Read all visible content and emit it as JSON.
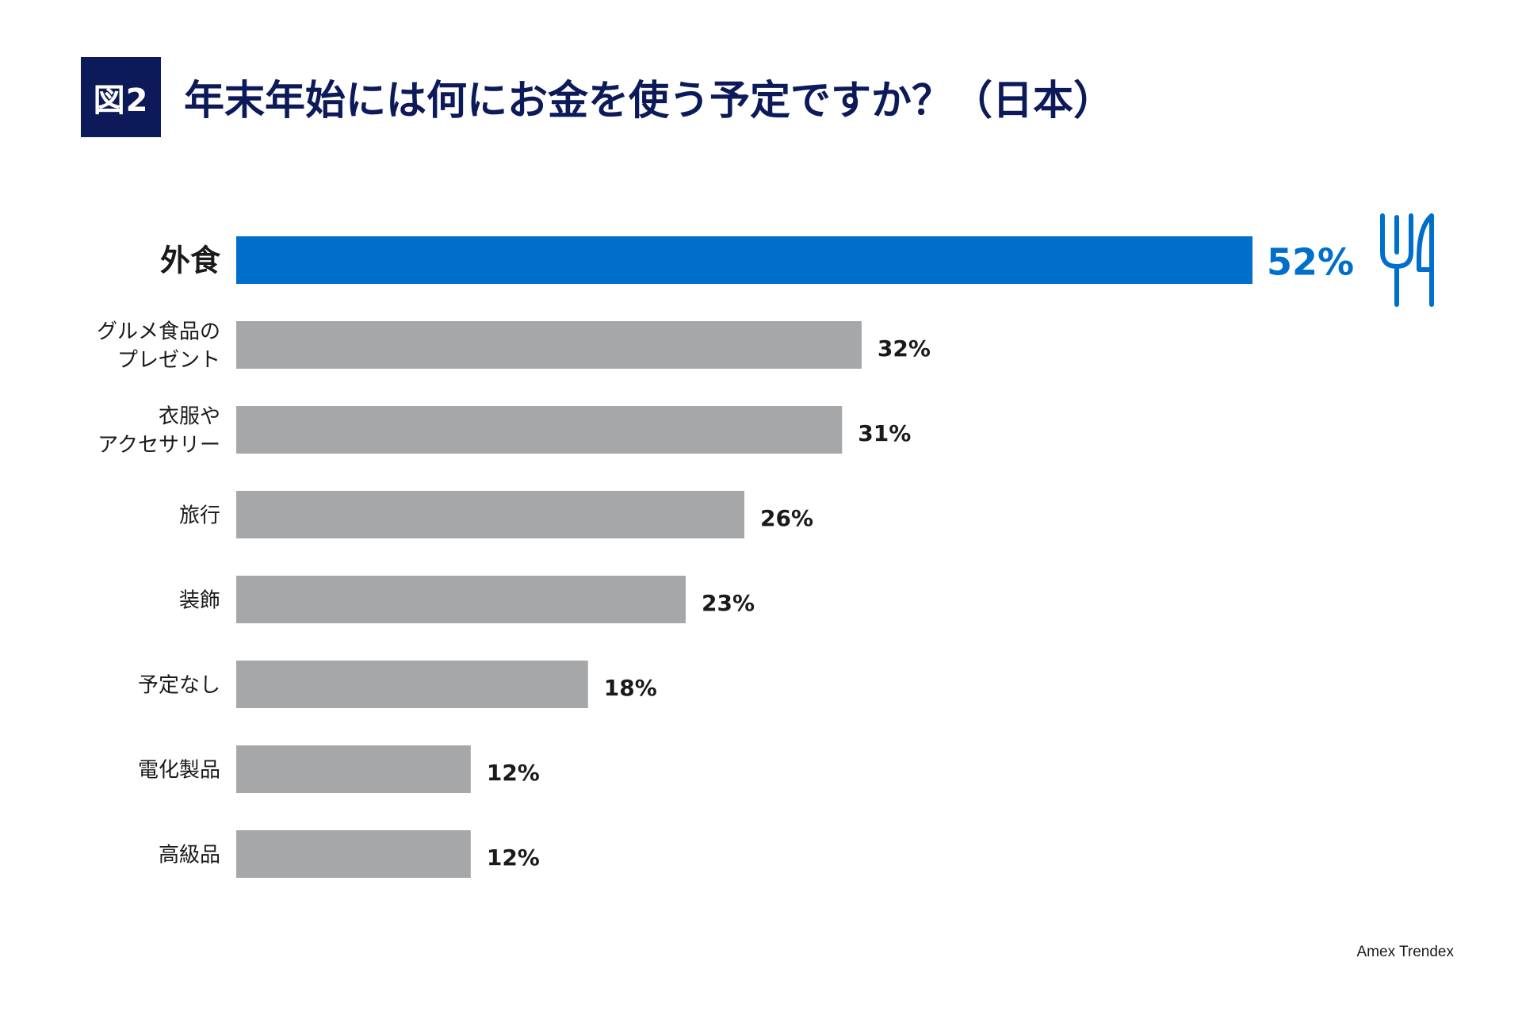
{
  "figure": {
    "badge": "図2",
    "title": "年末年始には何にお金を使う予定ですか？（日本）",
    "source": "Amex Trendex"
  },
  "colors": {
    "highlight": "#006fcc",
    "bar": "#a6a7a9",
    "badge_bg": "#0c1a5a",
    "text": "#1a1a1a"
  },
  "chart_data": {
    "type": "bar",
    "orientation": "horizontal",
    "title": "年末年始には何にお金を使う予定ですか？（日本）",
    "categories": [
      [
        "外食"
      ],
      [
        "グルメ食品の",
        "プレゼント"
      ],
      [
        "衣服や",
        "アクセサリー"
      ],
      [
        "旅行"
      ],
      [
        "装飾"
      ],
      [
        "予定なし"
      ],
      [
        "電化製品"
      ],
      [
        "高級品"
      ]
    ],
    "values": [
      52,
      32,
      31,
      26,
      23,
      18,
      12,
      12
    ],
    "value_labels": [
      "52%",
      "32%",
      "31%",
      "26%",
      "23%",
      "18%",
      "12%",
      "12%"
    ],
    "highlight_index": 0,
    "highlight_icon": "fork-knife-icon",
    "xlim": [
      0,
      52
    ],
    "unit": "%"
  }
}
